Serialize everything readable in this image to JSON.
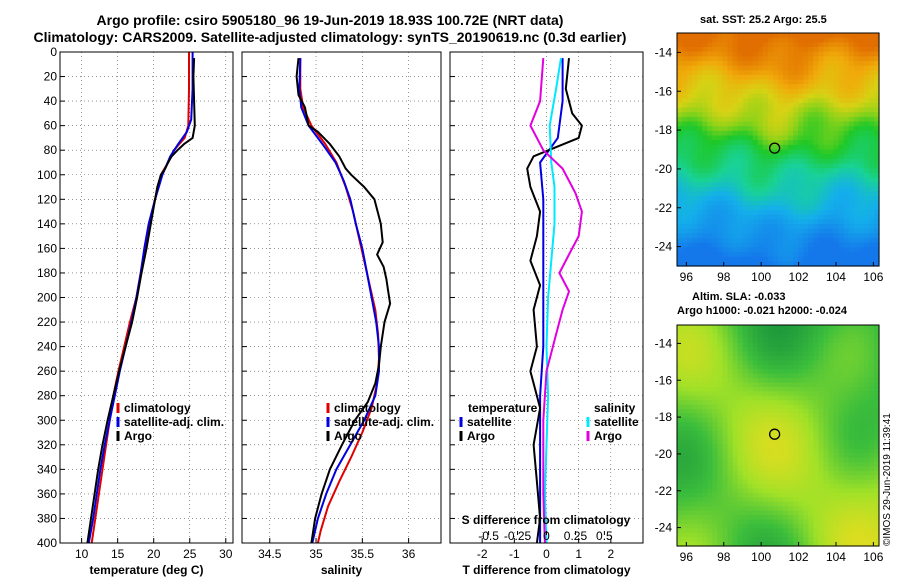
{
  "header": {
    "title_line1": "Argo profile: csiro 5905180_96 19-Jun-2019 18.93S 100.72E (NRT data)",
    "title_line2": "Climatology: CARS2009. Satellite-adjusted climatology: synTS_20190619.nc (0.3d earlier)"
  },
  "map_sst": {
    "title": "sat. SST: 25.2 Argo: 25.5"
  },
  "map_sla": {
    "title_line1": "Altim. SLA: -0.033",
    "title_line2": "Argo h1000: -0.021 h2000: -0.024"
  },
  "credit": "©IMOS 29-Jun-2019 11:39:41",
  "colors": {
    "climatology": "#e00000",
    "satellite": "#0000e0",
    "argo": "#000000",
    "sat_salinity": "#00e8ff",
    "argo_salinity": "#e000e0"
  },
  "chart_data": [
    {
      "type": "line",
      "id": "temperature",
      "xlabel": "temperature (deg C)",
      "ylabel": "depth",
      "xlim": [
        7,
        31
      ],
      "ylim": [
        0,
        400
      ],
      "xticks": [
        10,
        15,
        20,
        25,
        30
      ],
      "yticks": [
        0,
        20,
        40,
        60,
        80,
        100,
        120,
        140,
        160,
        180,
        200,
        220,
        240,
        260,
        280,
        300,
        320,
        340,
        360,
        380,
        400
      ],
      "legend": [
        "climatology",
        "satellite-adj. clim.",
        "Argo"
      ],
      "series": [
        {
          "name": "climatology",
          "color": "red",
          "points": [
            [
              24.9,
              0
            ],
            [
              24.9,
              30
            ],
            [
              24.8,
              60
            ],
            [
              24.3,
              70
            ],
            [
              22.8,
              80
            ],
            [
              22.0,
              90
            ],
            [
              21.0,
              100
            ],
            [
              20.2,
              120
            ],
            [
              19.4,
              140
            ],
            [
              18.8,
              160
            ],
            [
              18.2,
              180
            ],
            [
              17.6,
              200
            ],
            [
              16.7,
              220
            ],
            [
              15.9,
              240
            ],
            [
              15.1,
              260
            ],
            [
              14.4,
              280
            ],
            [
              13.9,
              300
            ],
            [
              13.4,
              320
            ],
            [
              12.9,
              340
            ],
            [
              12.4,
              360
            ],
            [
              11.9,
              380
            ],
            [
              11.4,
              400
            ]
          ]
        },
        {
          "name": "satellite-adj. clim.",
          "color": "blue",
          "points": [
            [
              25.4,
              0
            ],
            [
              25.4,
              30
            ],
            [
              25.2,
              55
            ],
            [
              24.6,
              65
            ],
            [
              23.4,
              75
            ],
            [
              22.3,
              85
            ],
            [
              21.2,
              100
            ],
            [
              20.2,
              120
            ],
            [
              19.3,
              140
            ],
            [
              18.7,
              160
            ],
            [
              18.2,
              180
            ],
            [
              17.6,
              200
            ],
            [
              16.9,
              220
            ],
            [
              16.1,
              240
            ],
            [
              15.3,
              260
            ],
            [
              14.6,
              280
            ],
            [
              13.9,
              300
            ],
            [
              13.2,
              320
            ],
            [
              12.6,
              340
            ],
            [
              12.1,
              360
            ],
            [
              11.6,
              380
            ],
            [
              11.0,
              400
            ]
          ]
        },
        {
          "name": "Argo",
          "color": "black",
          "points": [
            [
              25.6,
              5
            ],
            [
              25.5,
              20
            ],
            [
              25.6,
              40
            ],
            [
              25.7,
              60
            ],
            [
              25.4,
              70
            ],
            [
              24.2,
              75
            ],
            [
              23.3,
              80
            ],
            [
              22.5,
              85
            ],
            [
              22.0,
              90
            ],
            [
              21.6,
              95
            ],
            [
              21.0,
              100
            ],
            [
              20.5,
              110
            ],
            [
              20.2,
              120
            ],
            [
              19.6,
              140
            ],
            [
              19.0,
              160
            ],
            [
              18.3,
              180
            ],
            [
              17.7,
              200
            ],
            [
              17.0,
              220
            ],
            [
              16.1,
              240
            ],
            [
              15.2,
              260
            ],
            [
              14.4,
              280
            ],
            [
              13.6,
              300
            ],
            [
              12.9,
              320
            ],
            [
              12.3,
              340
            ],
            [
              11.8,
              360
            ],
            [
              11.3,
              380
            ],
            [
              10.8,
              400
            ]
          ]
        }
      ]
    },
    {
      "type": "line",
      "id": "salinity",
      "xlabel": "salinity",
      "ylabel": "depth",
      "xlim": [
        34.2,
        36.35
      ],
      "ylim": [
        0,
        400
      ],
      "xticks": [
        34.5,
        35,
        35.5,
        36
      ],
      "yticks": [
        0,
        20,
        40,
        60,
        80,
        100,
        120,
        140,
        160,
        180,
        200,
        220,
        240,
        260,
        280,
        300,
        320,
        340,
        360,
        380,
        400
      ],
      "legend": [
        "climatology",
        "satellite-adj. clim.",
        "Argo"
      ],
      "series": [
        {
          "name": "climatology",
          "color": "red",
          "points": [
            [
              34.83,
              5
            ],
            [
              34.83,
              30
            ],
            [
              34.86,
              45
            ],
            [
              34.95,
              60
            ],
            [
              35.1,
              75
            ],
            [
              35.22,
              90
            ],
            [
              35.32,
              110
            ],
            [
              35.4,
              130
            ],
            [
              35.46,
              150
            ],
            [
              35.52,
              170
            ],
            [
              35.58,
              190
            ],
            [
              35.64,
              210
            ],
            [
              35.67,
              230
            ],
            [
              35.68,
              250
            ],
            [
              35.66,
              270
            ],
            [
              35.6,
              290
            ],
            [
              35.5,
              310
            ],
            [
              35.38,
              330
            ],
            [
              35.25,
              350
            ],
            [
              35.13,
              370
            ],
            [
              35.05,
              390
            ],
            [
              35.02,
              400
            ]
          ]
        },
        {
          "name": "satellite-adj. clim.",
          "color": "blue",
          "points": [
            [
              34.83,
              5
            ],
            [
              34.82,
              30
            ],
            [
              34.84,
              45
            ],
            [
              34.92,
              60
            ],
            [
              35.07,
              75
            ],
            [
              35.21,
              90
            ],
            [
              35.3,
              105
            ],
            [
              35.37,
              120
            ],
            [
              35.43,
              140
            ],
            [
              35.5,
              160
            ],
            [
              35.55,
              180
            ],
            [
              35.6,
              200
            ],
            [
              35.65,
              220
            ],
            [
              35.68,
              240
            ],
            [
              35.68,
              260
            ],
            [
              35.64,
              280
            ],
            [
              35.52,
              300
            ],
            [
              35.37,
              320
            ],
            [
              35.22,
              340
            ],
            [
              35.11,
              360
            ],
            [
              35.02,
              380
            ],
            [
              34.96,
              400
            ]
          ]
        },
        {
          "name": "Argo",
          "color": "black",
          "points": [
            [
              34.81,
              5
            ],
            [
              34.79,
              20
            ],
            [
              34.81,
              35
            ],
            [
              34.88,
              45
            ],
            [
              34.92,
              60
            ],
            [
              35.02,
              65
            ],
            [
              35.15,
              75
            ],
            [
              35.25,
              85
            ],
            [
              35.32,
              95
            ],
            [
              35.38,
              100
            ],
            [
              35.52,
              110
            ],
            [
              35.63,
              120
            ],
            [
              35.7,
              140
            ],
            [
              35.72,
              155
            ],
            [
              35.66,
              165
            ],
            [
              35.73,
              175
            ],
            [
              35.76,
              185
            ],
            [
              35.78,
              195
            ],
            [
              35.8,
              205
            ],
            [
              35.74,
              220
            ],
            [
              35.7,
              240
            ],
            [
              35.68,
              255
            ],
            [
              35.64,
              270
            ],
            [
              35.56,
              285
            ],
            [
              35.42,
              300
            ],
            [
              35.28,
              320
            ],
            [
              35.15,
              340
            ],
            [
              35.06,
              360
            ],
            [
              34.99,
              380
            ],
            [
              34.95,
              400
            ]
          ]
        }
      ]
    },
    {
      "type": "line",
      "id": "differences",
      "xlabel": "T difference from climatology",
      "xlabel_top": "S difference from climatology",
      "ylabel": "depth",
      "xlim": [
        -3,
        3
      ],
      "ylim": [
        0,
        400
      ],
      "xticks": [
        -2,
        -1,
        0,
        1,
        2
      ],
      "x2ticks": [
        {
          "label": "-0.5",
          "value": -1.8
        },
        {
          "label": "-0.25",
          "value": -0.9
        },
        {
          "label": "0",
          "value": 0
        },
        {
          "label": "0.25",
          "value": 0.9
        },
        {
          "label": "0.5",
          "value": 1.8
        }
      ],
      "yticks": [
        0,
        20,
        40,
        60,
        80,
        100,
        120,
        140,
        160,
        180,
        200,
        220,
        240,
        260,
        280,
        300,
        320,
        340,
        360,
        380,
        400
      ],
      "legend_temperature": {
        "title": "temperature",
        "items": [
          "satellite",
          "Argo"
        ]
      },
      "legend_salinity": {
        "title": "salinity",
        "items": [
          "satellite",
          "Argo"
        ]
      },
      "series": [
        {
          "name": "temperature satellite",
          "color": "blue",
          "points": [
            [
              0.5,
              5
            ],
            [
              0.5,
              40
            ],
            [
              0.35,
              70
            ],
            [
              -0.2,
              90
            ],
            [
              -0.1,
              120
            ],
            [
              -0.1,
              160
            ],
            [
              -0.1,
              200
            ],
            [
              -0.1,
              240
            ],
            [
              -0.2,
              280
            ],
            [
              -0.2,
              320
            ],
            [
              -0.2,
              360
            ],
            [
              -0.2,
              400
            ]
          ]
        },
        {
          "name": "temperature Argo",
          "color": "black",
          "points": [
            [
              0.7,
              5
            ],
            [
              0.6,
              30
            ],
            [
              0.8,
              50
            ],
            [
              1.1,
              60
            ],
            [
              1.0,
              70
            ],
            [
              -0.4,
              85
            ],
            [
              -0.6,
              95
            ],
            [
              -0.5,
              110
            ],
            [
              -0.2,
              130
            ],
            [
              -0.3,
              150
            ],
            [
              -0.5,
              170
            ],
            [
              -0.2,
              190
            ],
            [
              -0.4,
              210
            ],
            [
              -0.3,
              240
            ],
            [
              -0.5,
              260
            ],
            [
              -0.2,
              290
            ],
            [
              -0.4,
              320
            ],
            [
              -0.3,
              350
            ],
            [
              -0.2,
              380
            ],
            [
              -0.3,
              400
            ]
          ]
        },
        {
          "name": "salinity satellite",
          "color": "cyan",
          "points": [
            [
              0.45,
              5
            ],
            [
              0.3,
              30
            ],
            [
              0.1,
              60
            ],
            [
              0.15,
              90
            ],
            [
              0.25,
              110
            ],
            [
              0.25,
              140
            ],
            [
              0.15,
              170
            ],
            [
              0.05,
              200
            ],
            [
              0.0,
              240
            ],
            [
              0.05,
              280
            ],
            [
              0.0,
              320
            ],
            [
              -0.05,
              360
            ],
            [
              0.0,
              400
            ]
          ]
        },
        {
          "name": "salinity Argo",
          "color": "magenta",
          "points": [
            [
              -0.1,
              5
            ],
            [
              -0.2,
              40
            ],
            [
              -0.5,
              60
            ],
            [
              -0.1,
              80
            ],
            [
              0.5,
              95
            ],
            [
              0.9,
              115
            ],
            [
              1.1,
              130
            ],
            [
              1.0,
              150
            ],
            [
              0.7,
              165
            ],
            [
              0.4,
              180
            ],
            [
              0.7,
              195
            ],
            [
              0.5,
              210
            ],
            [
              0.3,
              230
            ],
            [
              0.0,
              260
            ],
            [
              -0.1,
              300
            ],
            [
              -0.1,
              360
            ],
            [
              -0.05,
              400
            ]
          ]
        }
      ]
    },
    {
      "type": "heatmap",
      "id": "sst-map",
      "title": "sat. SST: 25.2 Argo: 25.5",
      "xlim": [
        95.5,
        106.3
      ],
      "ylim": [
        -25,
        -13
      ],
      "xticks": [
        96,
        98,
        100,
        102,
        104,
        106
      ],
      "yticks": [
        -14,
        -16,
        -18,
        -20,
        -22,
        -24
      ],
      "marker": {
        "lon": 100.72,
        "lat": -18.93
      }
    },
    {
      "type": "heatmap",
      "id": "sla-map",
      "title": "Altim. SLA: -0.033",
      "subtitle": "Argo h1000: -0.021 h2000: -0.024",
      "xlim": [
        95.5,
        106.3
      ],
      "ylim": [
        -25,
        -13
      ],
      "xticks": [
        96,
        98,
        100,
        102,
        104,
        106
      ],
      "yticks": [
        -14,
        -16,
        -18,
        -20,
        -22,
        -24
      ],
      "marker": {
        "lon": 100.72,
        "lat": -18.93
      }
    }
  ]
}
